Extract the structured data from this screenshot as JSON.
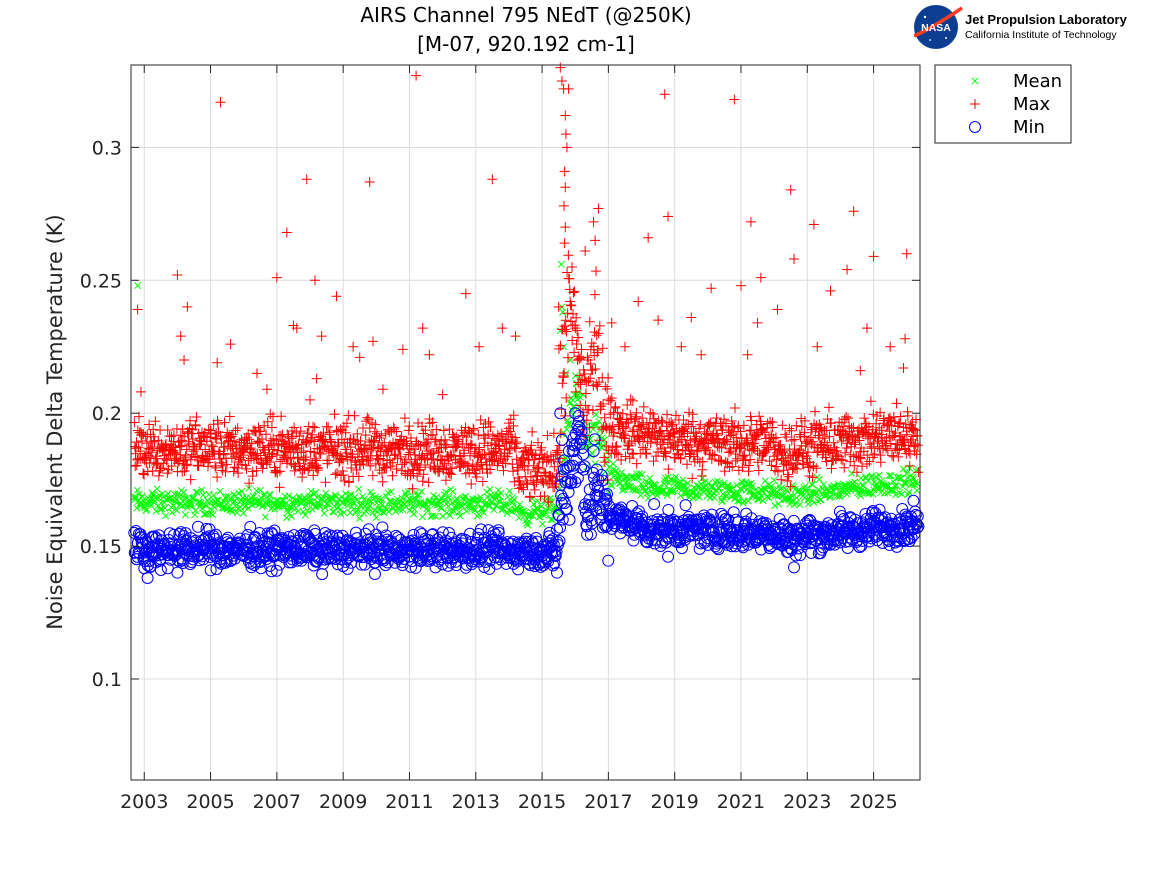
{
  "chart_data": {
    "type": "scatter",
    "title": "AIRS Channel 795 NEdT (@250K)",
    "subtitle": "[M-07, 920.192 cm-1]",
    "xlabel": "",
    "ylabel": "Noise Equivalent Delta Temperature (K)",
    "xlim": [
      2002.6,
      2026.4
    ],
    "ylim": [
      0.062,
      0.331
    ],
    "xticks": [
      2003,
      2005,
      2007,
      2009,
      2011,
      2013,
      2015,
      2017,
      2019,
      2021,
      2023,
      2025
    ],
    "xtick_labels": [
      "2003",
      "2005",
      "2007",
      "2009",
      "2011",
      "2013",
      "2015",
      "2017",
      "2019",
      "2021",
      "2023",
      "2025"
    ],
    "yticks": [
      0.1,
      0.15,
      0.2,
      0.25,
      0.3
    ],
    "ytick_labels": [
      "0.1",
      "0.15",
      "0.2",
      "0.25",
      "0.3"
    ],
    "grid": true,
    "legend_position": "outside-top-right",
    "series": [
      {
        "name": "Mean",
        "marker": "x",
        "color": "#00ff00",
        "baseline": [
          [
            2002.7,
            0.1665
          ],
          [
            2014.2,
            0.166
          ],
          [
            2014.3,
            0.1625
          ],
          [
            2015.45,
            0.1635
          ],
          [
            2015.6,
            0.178
          ],
          [
            2015.9,
            0.205
          ],
          [
            2016.1,
            0.213
          ],
          [
            2016.35,
            0.185
          ],
          [
            2016.6,
            0.191
          ],
          [
            2016.8,
            0.187
          ],
          [
            2017.0,
            0.1765
          ],
          [
            2018.0,
            0.172
          ],
          [
            2020.0,
            0.171
          ],
          [
            2022.0,
            0.17
          ],
          [
            2022.15,
            0.1685
          ],
          [
            2024.0,
            0.171
          ],
          [
            2025.0,
            0.173
          ],
          [
            2026.35,
            0.1745
          ]
        ],
        "outliers": [
          [
            2002.8,
            0.248
          ],
          [
            2006.5,
            0.171
          ],
          [
            2013.7,
            0.169
          ],
          [
            2015.55,
            0.231
          ],
          [
            2015.6,
            0.24
          ],
          [
            2015.62,
            0.238
          ],
          [
            2015.58,
            0.256
          ],
          [
            2015.65,
            0.225
          ],
          [
            2015.72,
            0.215
          ],
          [
            2015.85,
            0.22
          ],
          [
            2016.05,
            0.211
          ],
          [
            2017.0,
            0.17
          ],
          [
            2018.2,
            0.168
          ],
          [
            2020.9,
            0.167
          ]
        ]
      },
      {
        "name": "Max",
        "marker": "+",
        "color": "#ff0000",
        "baseline": [
          [
            2002.7,
            0.187
          ],
          [
            2010.0,
            0.186
          ],
          [
            2014.2,
            0.186
          ],
          [
            2014.3,
            0.178
          ],
          [
            2015.45,
            0.18
          ],
          [
            2015.6,
            0.21
          ],
          [
            2015.8,
            0.24
          ],
          [
            2016.0,
            0.225
          ],
          [
            2016.3,
            0.205
          ],
          [
            2016.6,
            0.225
          ],
          [
            2016.8,
            0.205
          ],
          [
            2017.0,
            0.195
          ],
          [
            2018.5,
            0.191
          ],
          [
            2020.0,
            0.189
          ],
          [
            2022.0,
            0.188
          ],
          [
            2022.15,
            0.185
          ],
          [
            2024.0,
            0.189
          ],
          [
            2026.35,
            0.192
          ]
        ],
        "outliers": [
          [
            2002.8,
            0.239
          ],
          [
            2002.9,
            0.208
          ],
          [
            2004.0,
            0.252
          ],
          [
            2004.1,
            0.229
          ],
          [
            2004.3,
            0.24
          ],
          [
            2004.2,
            0.22
          ],
          [
            2005.2,
            0.219
          ],
          [
            2005.3,
            0.317
          ],
          [
            2005.6,
            0.226
          ],
          [
            2006.4,
            0.215
          ],
          [
            2006.7,
            0.209
          ],
          [
            2007.0,
            0.251
          ],
          [
            2007.3,
            0.268
          ],
          [
            2007.5,
            0.233
          ],
          [
            2007.6,
            0.232
          ],
          [
            2007.9,
            0.288
          ],
          [
            2008.0,
            0.205
          ],
          [
            2008.15,
            0.25
          ],
          [
            2008.2,
            0.213
          ],
          [
            2008.35,
            0.229
          ],
          [
            2008.8,
            0.244
          ],
          [
            2009.3,
            0.225
          ],
          [
            2009.5,
            0.221
          ],
          [
            2009.8,
            0.287
          ],
          [
            2009.9,
            0.227
          ],
          [
            2010.2,
            0.209
          ],
          [
            2010.8,
            0.224
          ],
          [
            2011.2,
            0.327
          ],
          [
            2011.4,
            0.232
          ],
          [
            2011.6,
            0.222
          ],
          [
            2012.0,
            0.207
          ],
          [
            2012.7,
            0.245
          ],
          [
            2013.1,
            0.225
          ],
          [
            2013.5,
            0.288
          ],
          [
            2013.8,
            0.232
          ],
          [
            2014.2,
            0.229
          ],
          [
            2015.5,
            0.24
          ],
          [
            2015.55,
            0.33
          ],
          [
            2015.6,
            0.325
          ],
          [
            2015.65,
            0.322
          ],
          [
            2015.7,
            0.312
          ],
          [
            2015.72,
            0.305
          ],
          [
            2015.75,
            0.3
          ],
          [
            2015.68,
            0.291
          ],
          [
            2015.7,
            0.285
          ],
          [
            2015.66,
            0.278
          ],
          [
            2015.7,
            0.27
          ],
          [
            2015.68,
            0.264
          ],
          [
            2015.8,
            0.322
          ],
          [
            2016.3,
            0.261
          ],
          [
            2016.55,
            0.272
          ],
          [
            2016.6,
            0.265
          ],
          [
            2016.7,
            0.277
          ],
          [
            2017.1,
            0.234
          ],
          [
            2017.5,
            0.225
          ],
          [
            2017.9,
            0.242
          ],
          [
            2018.2,
            0.266
          ],
          [
            2018.5,
            0.235
          ],
          [
            2018.7,
            0.32
          ],
          [
            2018.8,
            0.274
          ],
          [
            2019.2,
            0.225
          ],
          [
            2019.5,
            0.236
          ],
          [
            2019.8,
            0.222
          ],
          [
            2020.1,
            0.247
          ],
          [
            2020.8,
            0.318
          ],
          [
            2021.0,
            0.248
          ],
          [
            2021.2,
            0.222
          ],
          [
            2021.3,
            0.272
          ],
          [
            2021.5,
            0.234
          ],
          [
            2021.6,
            0.251
          ],
          [
            2022.1,
            0.239
          ],
          [
            2022.5,
            0.284
          ],
          [
            2022.6,
            0.258
          ],
          [
            2023.2,
            0.271
          ],
          [
            2023.3,
            0.225
          ],
          [
            2023.7,
            0.246
          ],
          [
            2024.2,
            0.254
          ],
          [
            2024.4,
            0.276
          ],
          [
            2024.6,
            0.216
          ],
          [
            2024.8,
            0.232
          ],
          [
            2025.0,
            0.259
          ],
          [
            2025.5,
            0.225
          ],
          [
            2025.9,
            0.217
          ],
          [
            2025.95,
            0.228
          ],
          [
            2026.0,
            0.26
          ]
        ]
      },
      {
        "name": "Min",
        "marker": "o",
        "color": "#0000ff",
        "baseline": [
          [
            2002.7,
            0.149
          ],
          [
            2010.0,
            0.1485
          ],
          [
            2015.45,
            0.148
          ],
          [
            2015.55,
            0.165
          ],
          [
            2015.75,
            0.175
          ],
          [
            2015.95,
            0.186
          ],
          [
            2016.15,
            0.191
          ],
          [
            2016.35,
            0.165
          ],
          [
            2016.5,
            0.168
          ],
          [
            2016.6,
            0.178
          ],
          [
            2016.8,
            0.162
          ],
          [
            2017.3,
            0.16
          ],
          [
            2018.5,
            0.156
          ],
          [
            2020.0,
            0.156
          ],
          [
            2022.0,
            0.155
          ],
          [
            2022.15,
            0.1535
          ],
          [
            2024.0,
            0.155
          ],
          [
            2026.35,
            0.1585
          ]
        ],
        "outliers": [
          [
            2003.1,
            0.138
          ],
          [
            2003.5,
            0.141
          ],
          [
            2004.0,
            0.14
          ],
          [
            2015.45,
            0.14
          ],
          [
            2015.55,
            0.2
          ],
          [
            2015.6,
            0.19
          ],
          [
            2016.0,
            0.2
          ],
          [
            2016.1,
            0.199
          ],
          [
            2018.8,
            0.146
          ],
          [
            2022.6,
            0.142
          ]
        ]
      }
    ]
  },
  "logo": {
    "agency": "NASA",
    "lab_name": "Jet Propulsion Laboratory",
    "lab_sub": "California Institute of Technology"
  },
  "colors": {
    "mean": "#00ff00",
    "max": "#ff0000",
    "min": "#0000ff",
    "grid": "#dcdcdc",
    "axis": "#262626"
  }
}
